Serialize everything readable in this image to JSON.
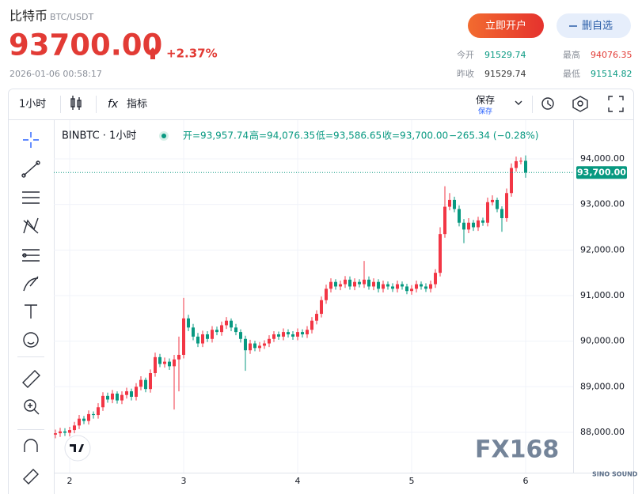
{
  "header": {
    "name": "比特币",
    "pair": "BTC/USDT",
    "price": "93700.00",
    "change": "+2.37%",
    "time": "2026-01-06 00:58:17"
  },
  "buttons": {
    "open_account": "立即开户",
    "remove_watch": "删自选"
  },
  "stats": [
    {
      "label": "今开",
      "value": "91529.74"
    },
    {
      "label": "最高",
      "value": "94076.35"
    },
    {
      "label": "昨收",
      "value": "91529.74"
    },
    {
      "label": "最低",
      "value": "91514.82"
    }
  ],
  "toolbar": {
    "interval": "1小时",
    "indicator_icon": "fx",
    "indicators": "指标",
    "save": "保存",
    "save_sub": "保存"
  },
  "legend": {
    "symbol": "BINBTC · 1小时",
    "open": "开=93,957.74",
    "high": "高=94,076.35",
    "low": "低=93,586.65",
    "close": "收=93,700.00",
    "change": "−265.34 (−0.28%)"
  },
  "watermarks": {
    "main": "FX168",
    "sub": "SINO SOUND"
  },
  "chart_data": {
    "type": "candlestick",
    "up_color": "#f23645",
    "down_color": "#089981",
    "grid": true,
    "categories": [
      null,
      null,
      null,
      "2",
      null,
      null,
      null,
      null,
      null,
      null,
      null,
      null,
      null,
      null,
      null,
      null,
      null,
      null,
      null,
      null,
      null,
      null,
      null,
      null,
      null,
      null,
      null,
      "3",
      null,
      null,
      null,
      null,
      null,
      null,
      null,
      null,
      null,
      null,
      null,
      null,
      null,
      null,
      null,
      null,
      null,
      null,
      null,
      null,
      null,
      null,
      null,
      "4",
      null,
      null,
      null,
      null,
      null,
      null,
      null,
      null,
      null,
      null,
      null,
      null,
      null,
      null,
      null,
      null,
      null,
      null,
      null,
      null,
      null,
      null,
      null,
      "5",
      null,
      null,
      null,
      null,
      null,
      null,
      null,
      null,
      null,
      null,
      null,
      null,
      null,
      null,
      null,
      null,
      null,
      null,
      null,
      null,
      null,
      null,
      null,
      "6"
    ],
    "open": [
      87950,
      87980,
      88020,
      87990,
      88050,
      88150,
      88300,
      88250,
      88400,
      88380,
      88550,
      88800,
      88720,
      88850,
      88700,
      88820,
      88900,
      88780,
      89000,
      89150,
      88950,
      89300,
      89650,
      89500,
      89550,
      89450,
      89600,
      89700,
      90500,
      90300,
      90100,
      89950,
      90150,
      90050,
      90250,
      90200,
      90350,
      90450,
      90300,
      90200,
      90050,
      89800,
      89950,
      89850,
      89900,
      89950,
      90050,
      90150,
      90100,
      90200,
      90150,
      90100,
      90200,
      90150,
      90250,
      90450,
      90600,
      90900,
      91150,
      91300,
      91200,
      91250,
      91350,
      91200,
      91300,
      91250,
      91350,
      91200,
      91300,
      91150,
      91250,
      91200,
      91150,
      91250,
      91200,
      91100,
      91150,
      91250,
      91200,
      91150,
      91250,
      91500,
      92350,
      92950,
      93100,
      92900,
      92600,
      92450,
      92600,
      92500,
      92650,
      92600,
      93050,
      93100,
      92900,
      92700,
      93250,
      93800,
      93950,
      93957.74
    ],
    "high": [
      88060,
      88100,
      88090,
      88120,
      88230,
      88380,
      88360,
      88480,
      88460,
      88640,
      88880,
      88870,
      88930,
      88900,
      88900,
      88980,
      88960,
      89080,
      89230,
      89200,
      89380,
      89750,
      89720,
      89640,
      89620,
      89700,
      90100,
      90950,
      90580,
      90380,
      90180,
      90230,
      90220,
      90330,
      90320,
      90430,
      90530,
      90500,
      90380,
      90260,
      90120,
      90030,
      90010,
      89980,
      90020,
      90130,
      90220,
      90210,
      90280,
      90260,
      90220,
      90280,
      90260,
      90330,
      90530,
      90680,
      90980,
      91240,
      91380,
      91360,
      91330,
      91430,
      91420,
      91380,
      91360,
      91760,
      91420,
      91380,
      91360,
      91330,
      91310,
      91270,
      91330,
      91310,
      91260,
      91230,
      91330,
      91310,
      91270,
      91330,
      91580,
      92500,
      93400,
      93250,
      93170,
      92980,
      92680,
      92700,
      92660,
      92730,
      92710,
      93150,
      93200,
      93150,
      92960,
      93350,
      93900,
      94050,
      94030,
      94076.35
    ],
    "low": [
      87870,
      87900,
      87920,
      87910,
      87980,
      88070,
      88180,
      88170,
      88300,
      88300,
      88470,
      88650,
      88640,
      88630,
      88620,
      88740,
      88700,
      88700,
      88920,
      88880,
      88870,
      89220,
      89430,
      89420,
      89370,
      88500,
      88900,
      89620,
      90220,
      90020,
      89870,
      89870,
      89980,
      89970,
      90130,
      90120,
      90270,
      90220,
      90130,
      89970,
      89350,
      89720,
      89780,
      89770,
      89830,
      89870,
      89980,
      90030,
      90020,
      90080,
      90030,
      90020,
      90080,
      90070,
      90170,
      90370,
      90520,
      90820,
      91070,
      91130,
      91120,
      91170,
      91130,
      91120,
      91180,
      91170,
      91130,
      91120,
      91070,
      91070,
      91130,
      91080,
      91070,
      91130,
      91030,
      91020,
      91070,
      91130,
      91080,
      91070,
      91170,
      91420,
      92270,
      92870,
      92830,
      92520,
      92150,
      92370,
      92420,
      92420,
      92530,
      92520,
      92980,
      92830,
      92400,
      92620,
      93170,
      93720,
      93880,
      93586.65
    ],
    "close": [
      87980,
      88020,
      87990,
      88050,
      88150,
      88300,
      88250,
      88400,
      88380,
      88550,
      88800,
      88720,
      88850,
      88700,
      88820,
      88900,
      88780,
      89000,
      89150,
      88950,
      89300,
      89650,
      89500,
      89550,
      89450,
      89600,
      89700,
      90500,
      90300,
      90100,
      89950,
      90150,
      90050,
      90250,
      90200,
      90350,
      90450,
      90300,
      90200,
      90050,
      89800,
      89950,
      89850,
      89900,
      89950,
      90050,
      90150,
      90100,
      90200,
      90150,
      90100,
      90200,
      90150,
      90250,
      90450,
      90600,
      90900,
      91150,
      91300,
      91200,
      91250,
      91350,
      91200,
      91300,
      91250,
      91350,
      91200,
      91300,
      91150,
      91250,
      91200,
      91150,
      91250,
      91200,
      91100,
      91150,
      91250,
      91200,
      91150,
      91250,
      91500,
      92350,
      92950,
      93100,
      92900,
      92600,
      92450,
      92600,
      92500,
      92650,
      92600,
      93050,
      93100,
      92900,
      92700,
      93250,
      93800,
      93950,
      93957.74,
      93700
    ],
    "ylim": [
      87115,
      94850
    ],
    "yticks": [
      {
        "value": 88000,
        "label": "88,000.00"
      },
      {
        "value": 89000,
        "label": "89,000.00"
      },
      {
        "value": 90000,
        "label": "90,000.00"
      },
      {
        "value": 91000,
        "label": "91,000.00"
      },
      {
        "value": 92000,
        "label": "92,000.00"
      },
      {
        "value": 93000,
        "label": "93,000.00"
      },
      {
        "value": 94000,
        "label": "94,000.00"
      }
    ],
    "last_price": {
      "value": 93700,
      "label": "93,700.00"
    }
  }
}
